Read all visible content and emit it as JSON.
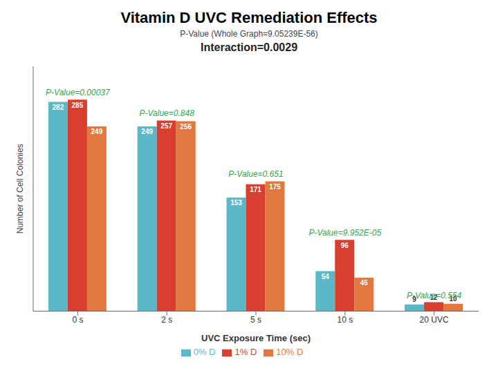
{
  "chart_data": {
    "type": "bar",
    "title": "Vitamin D UVC Remediation Effects",
    "subtitle": "P-Value (Whole Graph=9.05239E-56)",
    "annotations": [
      {
        "text": "Interaction=0.0029",
        "color": "#222222"
      },
      {
        "text": "P-Value=0.00037",
        "color": "#2EA84A"
      },
      {
        "text": "P-Value=0.848",
        "color": "#2EA84A"
      },
      {
        "text": "P-Value=0.651",
        "color": "#2EA84A"
      },
      {
        "text": "P-Value=9.952E-05",
        "color": "#2EA84A"
      },
      {
        "text": "P-Value=0.554",
        "color": "#2EA84A"
      }
    ],
    "categories": [
      "0 s",
      "2 s",
      "5 s",
      "10 s",
      "20 UVC"
    ],
    "series": [
      {
        "name": "0% D",
        "color": "#5BB8C9",
        "values": [
          282,
          249,
          153,
          54,
          9
        ]
      },
      {
        "name": "1% D",
        "color": "#D93F2E",
        "values": [
          285,
          257,
          171,
          96,
          12
        ]
      },
      {
        "name": "10% D",
        "color": "#E07840",
        "values": [
          249,
          256,
          175,
          45,
          10
        ]
      }
    ],
    "xlabel": "UVC Exposure Time (sec)",
    "ylabel": "Number of Cell Colonies",
    "ylim": [
      0,
      330
    ],
    "tick_labels": "x",
    "data_labels": true,
    "legend": "bottom",
    "grid": false
  }
}
